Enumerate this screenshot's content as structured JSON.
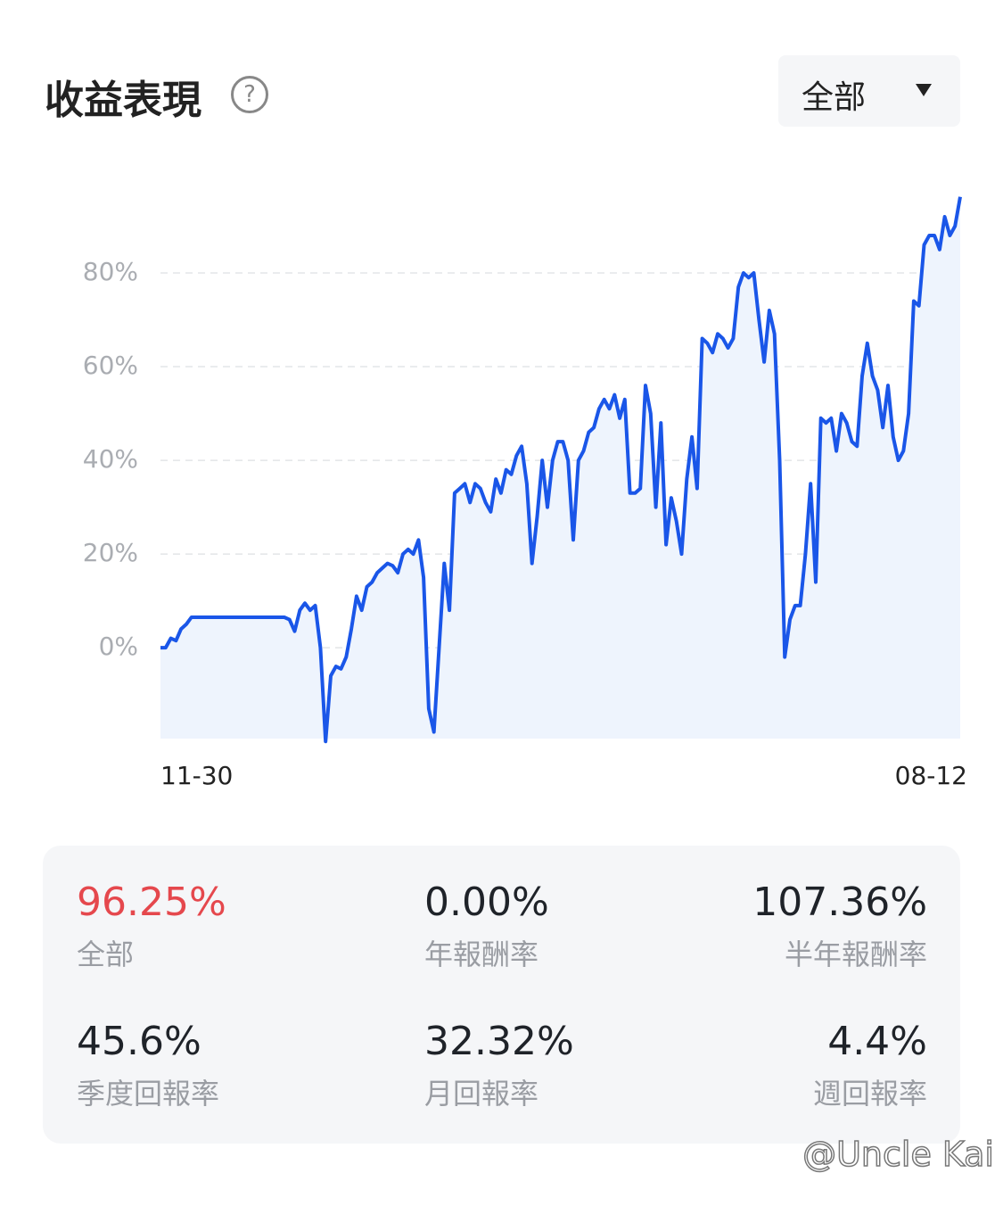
{
  "header": {
    "title": "收益表現",
    "help_icon": "?",
    "dropdown": "全部"
  },
  "chart_data": {
    "type": "line",
    "categories": [
      "11-30",
      null,
      null,
      null,
      null,
      null,
      null,
      null,
      null,
      null,
      null,
      null,
      null,
      null,
      null,
      null,
      null,
      null,
      null,
      null,
      null,
      null,
      null,
      null,
      null,
      null,
      null,
      null,
      null,
      null,
      null,
      null,
      null,
      null,
      null,
      null,
      null,
      null,
      null,
      null,
      null,
      null,
      null,
      null,
      null,
      null,
      null,
      null,
      null,
      null,
      null,
      null,
      null,
      null,
      null,
      null,
      null,
      null,
      null,
      null,
      null,
      null,
      null,
      null,
      null,
      null,
      null,
      null,
      null,
      null,
      null,
      null,
      null,
      null,
      null,
      null,
      null,
      null,
      null,
      null,
      null,
      null,
      null,
      null,
      null,
      null,
      null,
      null,
      null,
      null,
      null,
      null,
      null,
      null,
      null,
      null,
      null,
      null,
      null,
      null,
      null,
      null,
      null,
      null,
      null,
      null,
      null,
      null,
      null,
      null,
      null,
      null,
      null,
      null,
      null,
      null,
      null,
      null,
      null,
      null,
      null,
      null,
      null,
      null,
      null,
      null,
      null,
      null,
      null,
      null,
      null,
      null,
      null,
      null,
      null,
      null,
      null,
      null,
      null,
      null,
      null,
      null,
      null,
      null,
      null,
      null,
      null,
      null,
      null,
      null,
      null,
      null,
      null,
      null,
      null,
      "08-12"
    ],
    "values": [
      0,
      0,
      2,
      1.5,
      4,
      5,
      6.5,
      6.5,
      6.5,
      6.5,
      6.5,
      6.5,
      6.5,
      6.5,
      6.5,
      6.5,
      6.5,
      6.5,
      6.5,
      6.5,
      6.5,
      6.5,
      6.5,
      6.5,
      6.5,
      6,
      3.5,
      8,
      9.5,
      8,
      9,
      0,
      -20,
      -6,
      -4,
      -4.5,
      -2,
      4,
      11,
      8,
      13,
      14,
      16,
      17,
      18,
      17.5,
      16,
      20,
      21,
      20,
      23,
      15,
      -13,
      -18,
      0,
      18,
      8,
      33,
      34,
      35,
      31,
      35,
      34,
      31,
      29,
      36,
      33,
      38,
      37,
      41,
      43,
      35,
      18,
      28,
      40,
      30,
      40,
      44,
      44,
      40,
      23,
      40,
      42,
      46,
      47,
      51,
      53,
      51,
      54,
      49,
      53,
      33,
      33,
      34,
      56,
      50,
      30,
      48,
      22,
      32,
      27,
      20,
      36,
      45,
      34,
      66,
      65,
      63,
      67,
      66,
      64,
      66,
      77,
      80,
      79,
      80,
      70,
      61,
      72,
      67,
      40,
      -2,
      6,
      9,
      9,
      20,
      35,
      14,
      49,
      48,
      49,
      42,
      50,
      48,
      44,
      43,
      58,
      65,
      58,
      55,
      47,
      56,
      45,
      40,
      42,
      50,
      74,
      73,
      86,
      88,
      88,
      85,
      92,
      88,
      90,
      96.25
    ],
    "color": "#1a56e8",
    "ylim": [
      -19.4,
      100
    ],
    "yticks": [
      {
        "value": 0,
        "label": "0%"
      },
      {
        "value": 20,
        "label": "20%"
      },
      {
        "value": 40,
        "label": "40%"
      },
      {
        "value": 60,
        "label": "60%"
      },
      {
        "value": 80,
        "label": "80%"
      }
    ],
    "grid": true
  },
  "stats": [
    {
      "value": "96.25%",
      "label": "全部"
    },
    {
      "value": "0.00%",
      "label": "年報酬率"
    },
    {
      "value": "107.36%",
      "label": "半年報酬率"
    },
    {
      "value": "45.6%",
      "label": "季度回報率"
    },
    {
      "value": "32.32%",
      "label": "月回報率"
    },
    {
      "value": "4.4%",
      "label": "週回報率"
    }
  ],
  "watermark": "@Uncle Kai"
}
